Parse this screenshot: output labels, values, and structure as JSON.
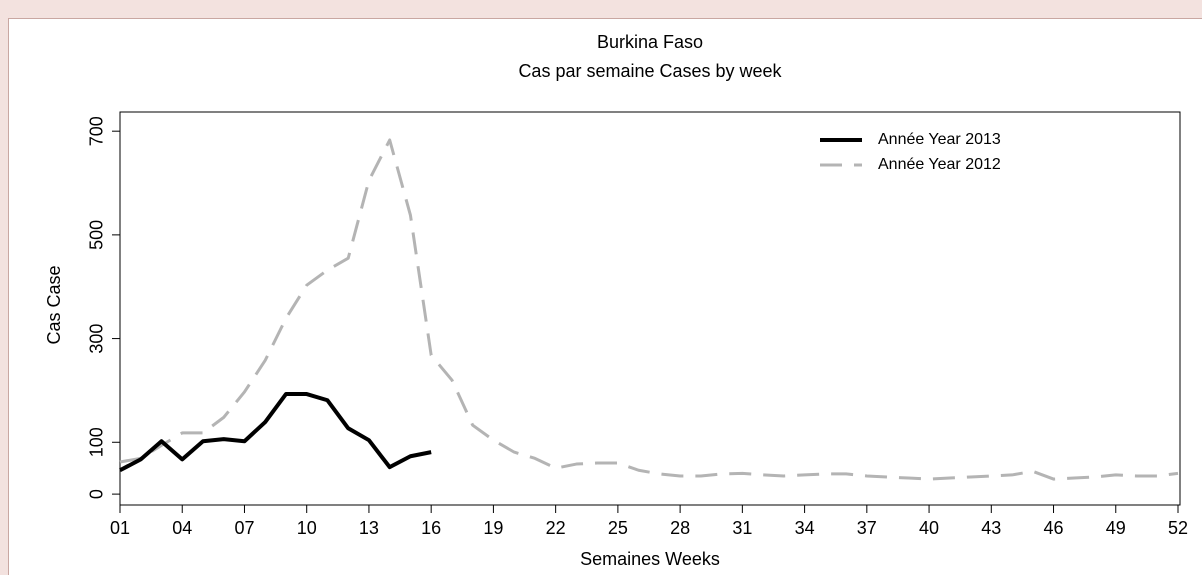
{
  "chart_data": {
    "type": "line",
    "title": "Burkina Faso",
    "subtitle": "Cas par semaine Cases by week",
    "x_label": "Semaines Weeks",
    "y_label": "Cas Case",
    "x": [
      1,
      2,
      3,
      4,
      5,
      6,
      7,
      8,
      9,
      10,
      11,
      12,
      13,
      14,
      15,
      16,
      17,
      18,
      19,
      20,
      21,
      22,
      23,
      24,
      25,
      26,
      27,
      28,
      29,
      30,
      31,
      32,
      33,
      34,
      35,
      36,
      37,
      38,
      39,
      40,
      41,
      42,
      43,
      44,
      45,
      46,
      47,
      48,
      49,
      50,
      51,
      52
    ],
    "series": [
      {
        "name": "Année Year 2013",
        "color": "#000000",
        "dashed": false,
        "values": [
          46,
          67,
          102,
          67,
          102,
          106,
          102,
          139,
          193,
          193,
          181,
          127,
          104,
          52,
          73,
          81,
          null,
          null,
          null,
          null,
          null,
          null,
          null,
          null,
          null,
          null,
          null,
          null,
          null,
          null,
          null,
          null,
          null,
          null,
          null,
          null,
          null,
          null,
          null,
          null,
          null,
          null,
          null,
          null,
          null,
          null,
          null,
          null,
          null,
          null,
          null,
          null
        ]
      },
      {
        "name": "Année Year 2012",
        "color": "#b4b4b4",
        "dashed": true,
        "values": [
          62,
          69,
          94,
          118,
          118,
          148,
          197,
          258,
          339,
          403,
          432,
          455,
          605,
          683,
          538,
          268,
          220,
          133,
          104,
          81,
          69,
          50,
          58,
          60,
          60,
          46,
          39,
          35,
          35,
          39,
          40,
          37,
          35,
          37,
          39,
          39,
          35,
          33,
          31,
          29,
          31,
          33,
          35,
          37,
          44,
          29,
          31,
          33,
          37,
          35,
          35,
          40
        ]
      }
    ],
    "xlim": [
      1,
      52
    ],
    "ylim": [
      -21,
      737
    ],
    "xticks": [
      {
        "value": 1,
        "label": "01"
      },
      {
        "value": 4,
        "label": "04"
      },
      {
        "value": 7,
        "label": "07"
      },
      10,
      13,
      16,
      19,
      22,
      25,
      28,
      31,
      34,
      37,
      40,
      43,
      46,
      49,
      52
    ],
    "yticks": [
      0,
      100,
      300,
      500,
      700
    ],
    "legend": "top-right"
  }
}
